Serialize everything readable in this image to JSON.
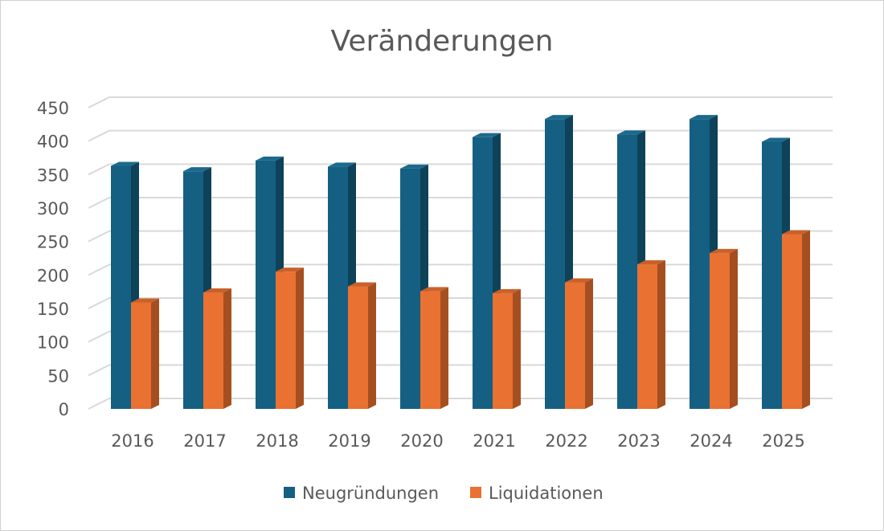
{
  "chart_data": {
    "type": "bar",
    "style": "3d-clustered-column",
    "title": "Veränderungen",
    "xlabel": "",
    "ylabel": "",
    "ylim": [
      0,
      450
    ],
    "yticks": [
      0,
      50,
      100,
      150,
      200,
      250,
      300,
      350,
      400,
      450
    ],
    "grid": true,
    "legend_position": "bottom",
    "categories": [
      "2016",
      "2017",
      "2018",
      "2019",
      "2020",
      "2021",
      "2022",
      "2023",
      "2024",
      "2025"
    ],
    "series": [
      {
        "name": "Neugründungen",
        "color": "#156082",
        "side_color": "#0e4259",
        "top_color": "#1b6a8d",
        "values": [
          363,
          355,
          371,
          362,
          359,
          406,
          433,
          410,
          433,
          399
        ]
      },
      {
        "name": "Liquidationen",
        "color": "#e97132",
        "side_color": "#a54f20",
        "top_color": "#c8612a",
        "values": [
          159,
          174,
          205,
          183,
          176,
          173,
          189,
          216,
          233,
          261
        ]
      }
    ]
  }
}
